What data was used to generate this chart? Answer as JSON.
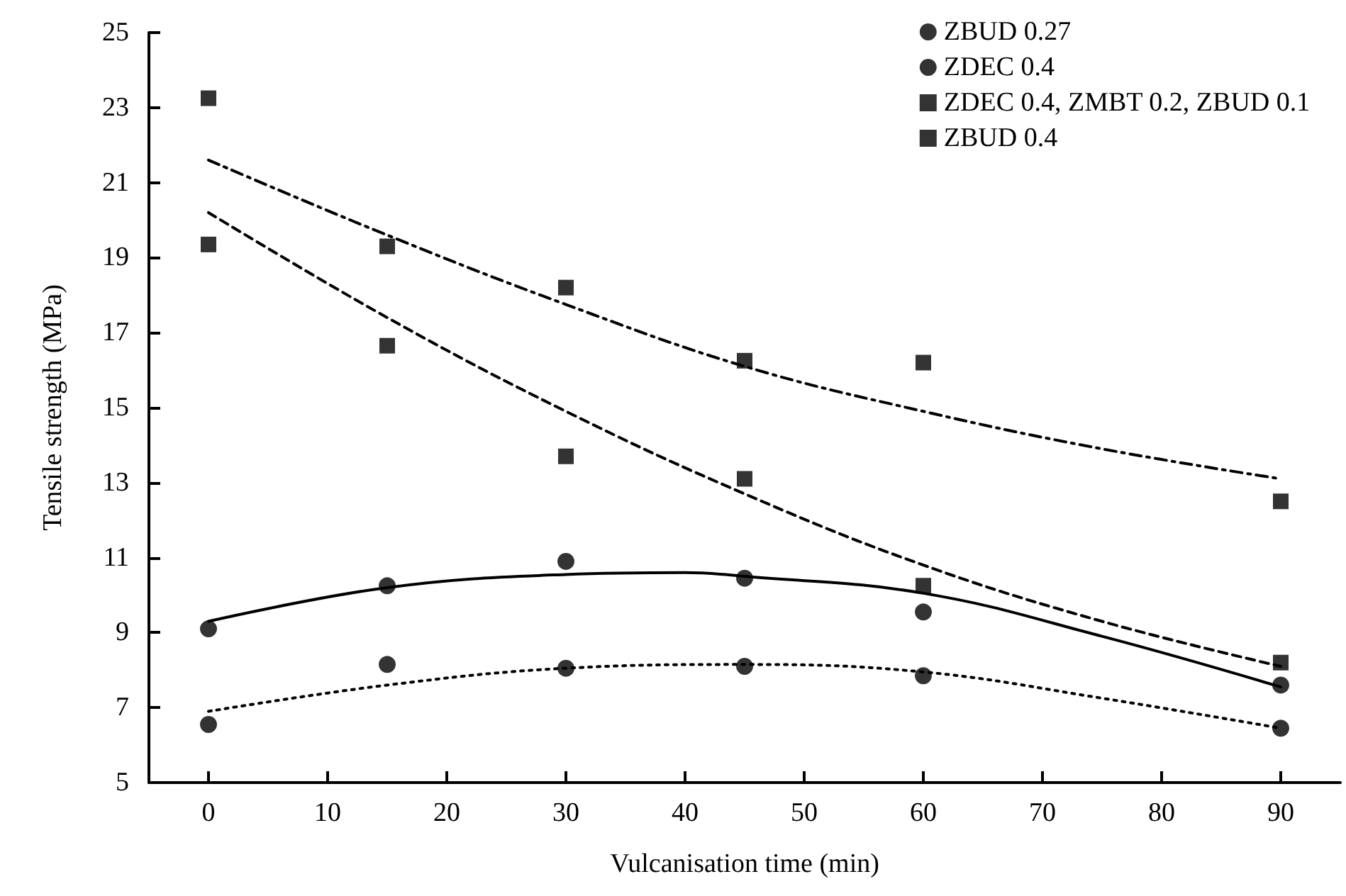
{
  "chart_data": {
    "type": "scatter",
    "xlabel": "Vulcanisation time (min)",
    "ylabel": "Tensile strength (MPa)",
    "xlim": [
      -5,
      95
    ],
    "xticks": [
      0,
      10,
      20,
      30,
      40,
      50,
      60,
      70,
      80,
      90
    ],
    "ylim": [
      5,
      25
    ],
    "yticks": [
      5,
      7,
      9,
      11,
      13,
      15,
      17,
      19,
      21,
      23,
      25
    ],
    "grid": false,
    "legend": "top right",
    "x": [
      0,
      15,
      30,
      45,
      60,
      90
    ],
    "series": [
      {
        "name": "ZBUD 0.27",
        "color": "#000000",
        "marker": "circle",
        "line_style": "solid",
        "values": [
          9.1,
          10.25,
          10.9,
          10.45,
          9.55,
          7.6
        ]
      },
      {
        "name": "ZDEC 0.4",
        "color": "#000000",
        "marker": "circle",
        "line_style": "dotted",
        "values": [
          6.55,
          8.15,
          8.05,
          8.1,
          7.85,
          6.45
        ]
      },
      {
        "name": "ZDEC 0.4, ZMBT 0.2, ZBUD 0.1",
        "color": "#000000",
        "marker": "square",
        "line_style": "dashdot",
        "values": [
          23.25,
          16.65,
          18.2,
          16.25,
          16.2,
          12.5
        ]
      },
      {
        "name": "ZBUD 0.4",
        "color": "#000000",
        "marker": "square",
        "line_style": "dashed",
        "values": [
          19.35,
          19.3,
          13.7,
          13.1,
          10.25,
          8.2
        ]
      },
      {
        "type": "line",
        "color": "#000000",
        "marker": "none",
        "line_style": "solid",
        "x": [
          0,
          15,
          30,
          40,
          45,
          60,
          75,
          90
        ],
        "values": [
          9.3,
          10.2,
          10.55,
          10.6,
          10.5,
          10.05,
          8.9,
          7.55
        ]
      },
      {
        "type": "line",
        "color": "#000000",
        "marker": "none",
        "line_style": "dotted",
        "x": [
          0,
          15,
          30,
          45,
          60,
          75,
          90
        ],
        "values": [
          6.9,
          7.6,
          8.05,
          8.15,
          7.95,
          7.25,
          6.45
        ]
      },
      {
        "type": "line",
        "color": "#000000",
        "marker": "none",
        "line_style": "dashdot",
        "x": [
          0,
          15,
          30,
          45,
          60,
          75,
          90
        ],
        "values": [
          21.6,
          19.6,
          17.75,
          16.1,
          14.9,
          13.9,
          13.1
        ]
      },
      {
        "type": "line",
        "color": "#000000",
        "marker": "none",
        "line_style": "dashed",
        "x": [
          0,
          15,
          30,
          45,
          60,
          75,
          90
        ],
        "values": [
          20.2,
          17.4,
          14.9,
          12.7,
          10.8,
          9.3,
          8.1
        ]
      }
    ]
  }
}
